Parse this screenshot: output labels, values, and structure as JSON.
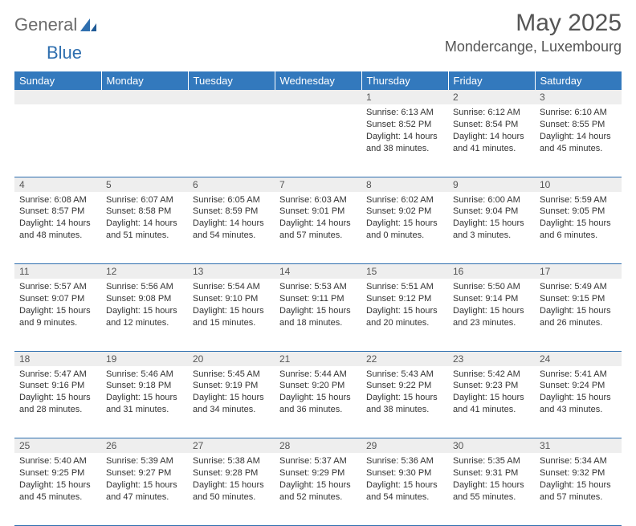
{
  "logo": {
    "general": "General",
    "blue": "Blue"
  },
  "title": "May 2025",
  "location": "Mondercange, Luxembourg",
  "colors": {
    "header_bg": "#3379bd",
    "header_text": "#ffffff",
    "daynum_bg": "#eeeeee",
    "border": "#2f6faf",
    "logo_gray": "#6b6b6b",
    "logo_blue": "#2f6faf",
    "text": "#333333"
  },
  "weekdays": [
    "Sunday",
    "Monday",
    "Tuesday",
    "Wednesday",
    "Thursday",
    "Friday",
    "Saturday"
  ],
  "weeks": [
    {
      "nums": [
        "",
        "",
        "",
        "",
        "1",
        "2",
        "3"
      ],
      "cells": [
        {},
        {},
        {},
        {},
        {
          "sunrise": "Sunrise: 6:13 AM",
          "sunset": "Sunset: 8:52 PM",
          "day1": "Daylight: 14 hours",
          "day2": "and 38 minutes."
        },
        {
          "sunrise": "Sunrise: 6:12 AM",
          "sunset": "Sunset: 8:54 PM",
          "day1": "Daylight: 14 hours",
          "day2": "and 41 minutes."
        },
        {
          "sunrise": "Sunrise: 6:10 AM",
          "sunset": "Sunset: 8:55 PM",
          "day1": "Daylight: 14 hours",
          "day2": "and 45 minutes."
        }
      ]
    },
    {
      "nums": [
        "4",
        "5",
        "6",
        "7",
        "8",
        "9",
        "10"
      ],
      "cells": [
        {
          "sunrise": "Sunrise: 6:08 AM",
          "sunset": "Sunset: 8:57 PM",
          "day1": "Daylight: 14 hours",
          "day2": "and 48 minutes."
        },
        {
          "sunrise": "Sunrise: 6:07 AM",
          "sunset": "Sunset: 8:58 PM",
          "day1": "Daylight: 14 hours",
          "day2": "and 51 minutes."
        },
        {
          "sunrise": "Sunrise: 6:05 AM",
          "sunset": "Sunset: 8:59 PM",
          "day1": "Daylight: 14 hours",
          "day2": "and 54 minutes."
        },
        {
          "sunrise": "Sunrise: 6:03 AM",
          "sunset": "Sunset: 9:01 PM",
          "day1": "Daylight: 14 hours",
          "day2": "and 57 minutes."
        },
        {
          "sunrise": "Sunrise: 6:02 AM",
          "sunset": "Sunset: 9:02 PM",
          "day1": "Daylight: 15 hours",
          "day2": "and 0 minutes."
        },
        {
          "sunrise": "Sunrise: 6:00 AM",
          "sunset": "Sunset: 9:04 PM",
          "day1": "Daylight: 15 hours",
          "day2": "and 3 minutes."
        },
        {
          "sunrise": "Sunrise: 5:59 AM",
          "sunset": "Sunset: 9:05 PM",
          "day1": "Daylight: 15 hours",
          "day2": "and 6 minutes."
        }
      ]
    },
    {
      "nums": [
        "11",
        "12",
        "13",
        "14",
        "15",
        "16",
        "17"
      ],
      "cells": [
        {
          "sunrise": "Sunrise: 5:57 AM",
          "sunset": "Sunset: 9:07 PM",
          "day1": "Daylight: 15 hours",
          "day2": "and 9 minutes."
        },
        {
          "sunrise": "Sunrise: 5:56 AM",
          "sunset": "Sunset: 9:08 PM",
          "day1": "Daylight: 15 hours",
          "day2": "and 12 minutes."
        },
        {
          "sunrise": "Sunrise: 5:54 AM",
          "sunset": "Sunset: 9:10 PM",
          "day1": "Daylight: 15 hours",
          "day2": "and 15 minutes."
        },
        {
          "sunrise": "Sunrise: 5:53 AM",
          "sunset": "Sunset: 9:11 PM",
          "day1": "Daylight: 15 hours",
          "day2": "and 18 minutes."
        },
        {
          "sunrise": "Sunrise: 5:51 AM",
          "sunset": "Sunset: 9:12 PM",
          "day1": "Daylight: 15 hours",
          "day2": "and 20 minutes."
        },
        {
          "sunrise": "Sunrise: 5:50 AM",
          "sunset": "Sunset: 9:14 PM",
          "day1": "Daylight: 15 hours",
          "day2": "and 23 minutes."
        },
        {
          "sunrise": "Sunrise: 5:49 AM",
          "sunset": "Sunset: 9:15 PM",
          "day1": "Daylight: 15 hours",
          "day2": "and 26 minutes."
        }
      ]
    },
    {
      "nums": [
        "18",
        "19",
        "20",
        "21",
        "22",
        "23",
        "24"
      ],
      "cells": [
        {
          "sunrise": "Sunrise: 5:47 AM",
          "sunset": "Sunset: 9:16 PM",
          "day1": "Daylight: 15 hours",
          "day2": "and 28 minutes."
        },
        {
          "sunrise": "Sunrise: 5:46 AM",
          "sunset": "Sunset: 9:18 PM",
          "day1": "Daylight: 15 hours",
          "day2": "and 31 minutes."
        },
        {
          "sunrise": "Sunrise: 5:45 AM",
          "sunset": "Sunset: 9:19 PM",
          "day1": "Daylight: 15 hours",
          "day2": "and 34 minutes."
        },
        {
          "sunrise": "Sunrise: 5:44 AM",
          "sunset": "Sunset: 9:20 PM",
          "day1": "Daylight: 15 hours",
          "day2": "and 36 minutes."
        },
        {
          "sunrise": "Sunrise: 5:43 AM",
          "sunset": "Sunset: 9:22 PM",
          "day1": "Daylight: 15 hours",
          "day2": "and 38 minutes."
        },
        {
          "sunrise": "Sunrise: 5:42 AM",
          "sunset": "Sunset: 9:23 PM",
          "day1": "Daylight: 15 hours",
          "day2": "and 41 minutes."
        },
        {
          "sunrise": "Sunrise: 5:41 AM",
          "sunset": "Sunset: 9:24 PM",
          "day1": "Daylight: 15 hours",
          "day2": "and 43 minutes."
        }
      ]
    },
    {
      "nums": [
        "25",
        "26",
        "27",
        "28",
        "29",
        "30",
        "31"
      ],
      "cells": [
        {
          "sunrise": "Sunrise: 5:40 AM",
          "sunset": "Sunset: 9:25 PM",
          "day1": "Daylight: 15 hours",
          "day2": "and 45 minutes."
        },
        {
          "sunrise": "Sunrise: 5:39 AM",
          "sunset": "Sunset: 9:27 PM",
          "day1": "Daylight: 15 hours",
          "day2": "and 47 minutes."
        },
        {
          "sunrise": "Sunrise: 5:38 AM",
          "sunset": "Sunset: 9:28 PM",
          "day1": "Daylight: 15 hours",
          "day2": "and 50 minutes."
        },
        {
          "sunrise": "Sunrise: 5:37 AM",
          "sunset": "Sunset: 9:29 PM",
          "day1": "Daylight: 15 hours",
          "day2": "and 52 minutes."
        },
        {
          "sunrise": "Sunrise: 5:36 AM",
          "sunset": "Sunset: 9:30 PM",
          "day1": "Daylight: 15 hours",
          "day2": "and 54 minutes."
        },
        {
          "sunrise": "Sunrise: 5:35 AM",
          "sunset": "Sunset: 9:31 PM",
          "day1": "Daylight: 15 hours",
          "day2": "and 55 minutes."
        },
        {
          "sunrise": "Sunrise: 5:34 AM",
          "sunset": "Sunset: 9:32 PM",
          "day1": "Daylight: 15 hours",
          "day2": "and 57 minutes."
        }
      ]
    }
  ]
}
